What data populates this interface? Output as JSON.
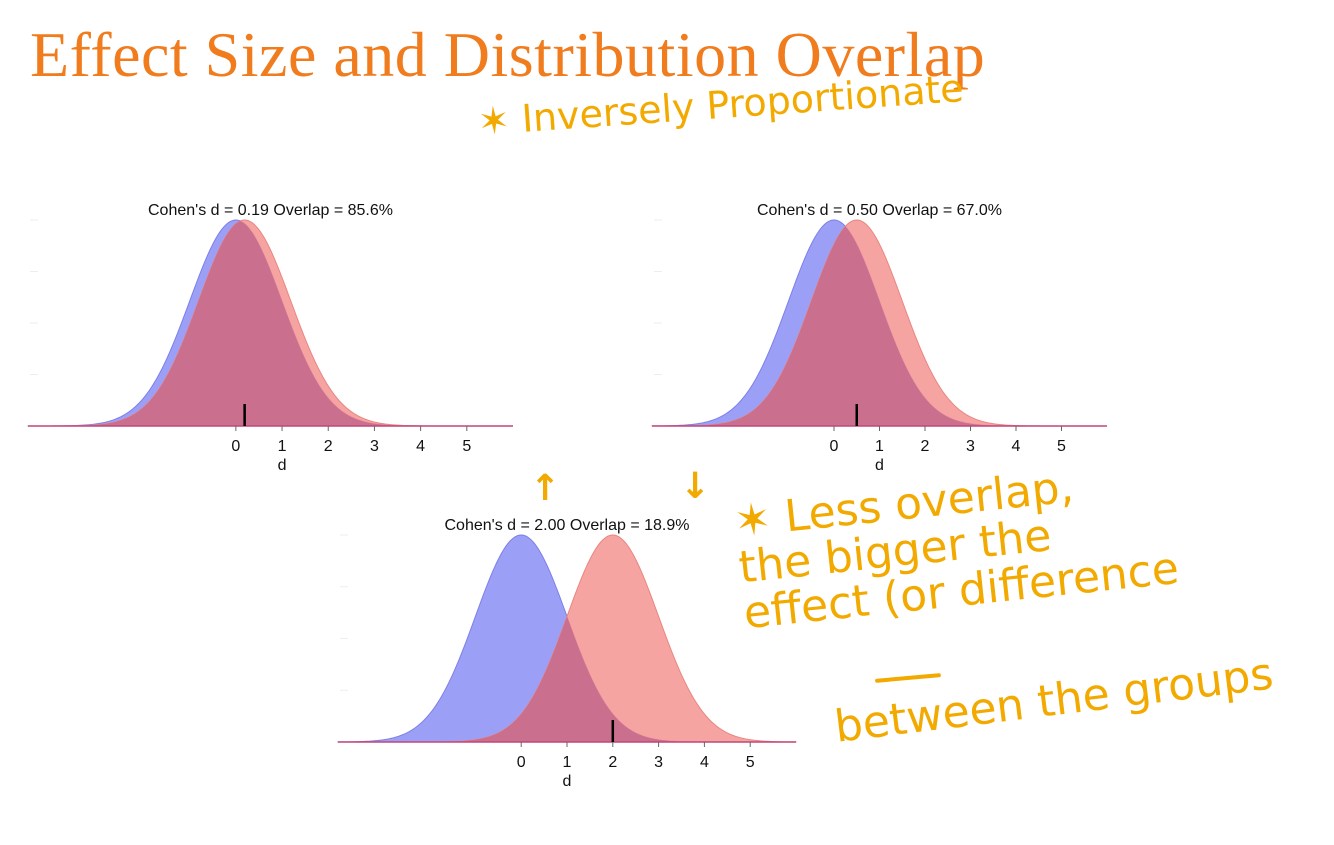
{
  "slide": {
    "title": "Effect Size and Distribution Overlap"
  },
  "annotations": {
    "inverse": "✶ Inversely Proportionate",
    "less_overlap_lines": [
      "✶ Less overlap,",
      "the bigger the",
      "effect (or difference"
    ],
    "between": "between the groups",
    "arrow_up": "↑",
    "arrow_down": "↓"
  },
  "colors": {
    "group_a": "#8a8ff5",
    "group_b": "#f59490",
    "overlap": "#c86a8c",
    "annotation": "#f2a900",
    "title": "#f07c1e"
  },
  "chart_data": [
    {
      "type": "area",
      "title": "Cohen's d = 0.19  Overlap = 85.6%",
      "xlabel": "d",
      "ylabel": "",
      "x_ticks": [
        0,
        1,
        2,
        3,
        4,
        5
      ],
      "xlim": [
        -4.5,
        6
      ],
      "grid": false,
      "series": [
        {
          "distribution": "normal",
          "mean": 0,
          "sd": 1
        },
        {
          "distribution": "normal",
          "mean": 0.19,
          "sd": 1
        }
      ],
      "marker_x": 0.19,
      "cohens_d": 0.19,
      "overlap_percent": 85.6
    },
    {
      "type": "area",
      "title": "Cohen's d = 0.50  Overlap = 67.0%",
      "xlabel": "d",
      "ylabel": "",
      "x_ticks": [
        0,
        1,
        2,
        3,
        4,
        5
      ],
      "xlim": [
        -4,
        6
      ],
      "grid": false,
      "series": [
        {
          "distribution": "normal",
          "mean": 0,
          "sd": 1
        },
        {
          "distribution": "normal",
          "mean": 0.5,
          "sd": 1
        }
      ],
      "marker_x": 0.5,
      "cohens_d": 0.5,
      "overlap_percent": 67.0
    },
    {
      "type": "area",
      "title": "Cohen's d = 2.00  Overlap = 18.9%",
      "xlabel": "d",
      "ylabel": "",
      "x_ticks": [
        0,
        1,
        2,
        3,
        4,
        5
      ],
      "xlim": [
        -4,
        6
      ],
      "grid": false,
      "series": [
        {
          "distribution": "normal",
          "mean": 0,
          "sd": 1
        },
        {
          "distribution": "normal",
          "mean": 2,
          "sd": 1
        }
      ],
      "marker_x": 2,
      "cohens_d": 2.0,
      "overlap_percent": 18.9
    }
  ]
}
